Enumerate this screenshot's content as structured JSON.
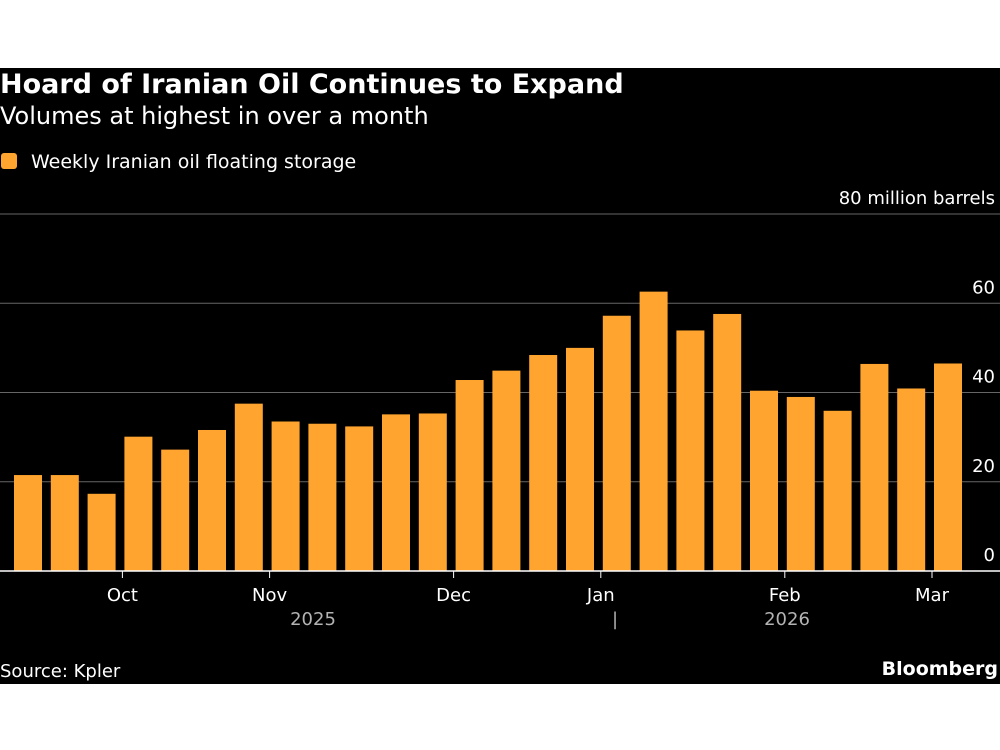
{
  "colors": {
    "background": "#000000",
    "bar": "#ffa42e",
    "grid": "#666666",
    "axis": "#ffffff",
    "muted": "#b3b3b3"
  },
  "source": "Source: Kpler",
  "brand": "Bloomberg",
  "year_separator": "|",
  "chart_data": {
    "type": "bar",
    "title": "Hoard of Iranian Oil Continues to Expand",
    "subtitle": "Volumes at highest in over a month",
    "legend": [
      "Weekly Iranian oil floating storage"
    ],
    "ylabel": "80 million barrels",
    "ylim": [
      0,
      80
    ],
    "yticks": [
      0,
      20,
      40,
      60,
      80
    ],
    "ytick_labels": [
      "0",
      "20",
      "40",
      "60",
      "80 million barrels"
    ],
    "grid": true,
    "xtick_labels": [
      {
        "label": "Oct",
        "bar_index": 3
      },
      {
        "label": "Nov",
        "bar_index": 7
      },
      {
        "label": "Dec",
        "bar_index": 12
      },
      {
        "label": "Jan",
        "bar_index": 16
      },
      {
        "label": "Feb",
        "bar_index": 21
      },
      {
        "label": "Mar",
        "bar_index": 25
      }
    ],
    "years": [
      {
        "label": "2025",
        "center_index": 8
      },
      {
        "label": "2026",
        "center_index": 21
      }
    ],
    "series": [
      {
        "name": "Weekly Iranian oil floating storage",
        "values": [
          21.5,
          21.5,
          17.3,
          30.1,
          27.2,
          31.6,
          37.5,
          33.5,
          33.0,
          32.4,
          35.1,
          35.3,
          42.8,
          44.9,
          48.4,
          50.0,
          57.2,
          62.6,
          53.9,
          57.6,
          40.4,
          39.0,
          35.9,
          46.4,
          40.9,
          46.5
        ]
      }
    ]
  }
}
